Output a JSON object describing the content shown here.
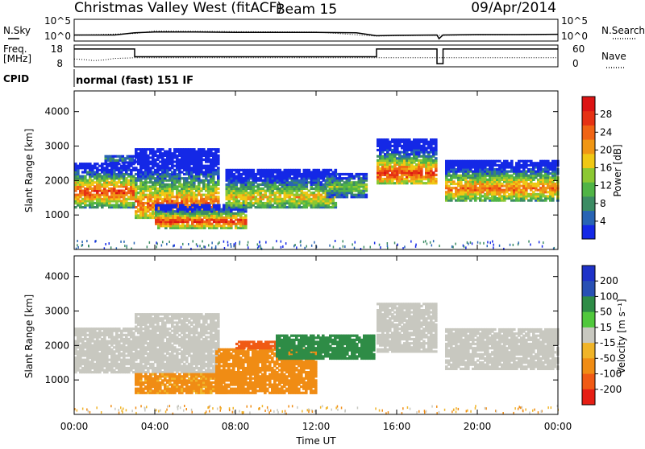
{
  "header": {
    "title": "Christmas Valley West (fitACF)",
    "beam": "Beam 15",
    "date": "09/Apr/2014"
  },
  "chart_data": [
    {
      "type": "line",
      "name": "noise-panel",
      "left_label": "N.Sky",
      "right_label": "N.Search",
      "left_ticks": [
        "10^5",
        "10^0"
      ],
      "right_ticks": [
        "10^5",
        "10^0"
      ],
      "series": [
        {
          "name": "N.Sky",
          "style": "solid",
          "x": [
            0,
            2,
            3,
            4,
            6,
            8,
            10,
            12,
            14,
            15,
            16,
            18,
            18.1,
            18.3,
            20,
            22,
            24
          ],
          "y": [
            1.2,
            1.2,
            1.8,
            2.0,
            2.0,
            1.9,
            1.9,
            1.9,
            1.8,
            1.0,
            1.1,
            1.2,
            0.2,
            1.2,
            1.3,
            1.3,
            1.4
          ]
        },
        {
          "name": "N.Search",
          "style": "dotted",
          "x": [
            0,
            3,
            4,
            8,
            12,
            15,
            16,
            18,
            20,
            24
          ],
          "y": [
            1.1,
            1.6,
            2.3,
            2.1,
            2.0,
            0.9,
            1.0,
            1.1,
            1.2,
            1.3
          ]
        }
      ],
      "xlim": [
        0,
        24
      ]
    },
    {
      "type": "line",
      "name": "frequency-panel",
      "left_label": "Freq. [MHz]",
      "right_label": "Nave",
      "left_ticks": [
        "18",
        "8"
      ],
      "right_ticks": [
        "60",
        "0"
      ],
      "series": [
        {
          "name": "Freq.",
          "style": "solid",
          "unit": "MHz",
          "x": [
            0,
            3.0,
            3.0,
            15.0,
            15.0,
            18.0,
            18.0,
            18.3,
            18.3,
            24
          ],
          "y": [
            16.5,
            16.5,
            11.5,
            11.5,
            16.5,
            16.5,
            7.0,
            7.0,
            16.5,
            16.5
          ]
        },
        {
          "name": "Nave",
          "style": "dotted",
          "x": [
            0,
            0.5,
            1,
            1.5,
            2,
            3,
            6,
            9,
            12,
            15,
            18,
            21,
            24
          ],
          "y": [
            20,
            18,
            15,
            17,
            22,
            24,
            24,
            24,
            24,
            24,
            24,
            24,
            24
          ]
        }
      ],
      "xlim": [
        0,
        24
      ]
    },
    {
      "type": "heatmap",
      "name": "power-panel",
      "ylabel": "Slant Range [km]",
      "yticks": [
        "1000",
        "2000",
        "3000",
        "4000"
      ],
      "ylim": [
        0,
        4600
      ],
      "xlim": [
        0,
        24
      ],
      "colorbar": {
        "label": "Power [dB]",
        "ticks": [
          "4",
          "8",
          "12",
          "16",
          "20",
          "24",
          "28"
        ],
        "colors": [
          "#1428e6",
          "#2864b4",
          "#3c8c64",
          "#50b446",
          "#8cc832",
          "#f0c814",
          "#f09614",
          "#f06414",
          "#e63214",
          "#dc1414"
        ]
      },
      "regions": [
        {
          "x0": 0.0,
          "x1": 3.0,
          "r0": 1200,
          "r1": 2500,
          "peak": 1650,
          "level": 0.85
        },
        {
          "x0": 1.5,
          "x1": 3.0,
          "r0": 2500,
          "r1": 2700,
          "peak": 2600,
          "level": 0.3
        },
        {
          "x0": 3.0,
          "x1": 7.2,
          "r0": 900,
          "r1": 2900,
          "peak": 1300,
          "level": 0.75
        },
        {
          "x0": 4.0,
          "x1": 8.5,
          "r0": 600,
          "r1": 1300,
          "peak": 800,
          "level": 0.9
        },
        {
          "x0": 7.5,
          "x1": 13.0,
          "r0": 1200,
          "r1": 2300,
          "peak": 1500,
          "level": 0.6
        },
        {
          "x0": 12.5,
          "x1": 14.5,
          "r0": 1500,
          "r1": 2200,
          "peak": 1800,
          "level": 0.45
        },
        {
          "x0": 15.0,
          "x1": 18.0,
          "r0": 1900,
          "r1": 3200,
          "peak": 2200,
          "level": 0.85
        },
        {
          "x0": 18.4,
          "x1": 24.0,
          "r0": 1400,
          "r1": 2600,
          "peak": 1750,
          "level": 0.75
        }
      ]
    },
    {
      "type": "heatmap",
      "name": "velocity-panel",
      "ylabel": "Slant Range [km]",
      "xlabel": "Time UT",
      "yticks": [
        "1000",
        "2000",
        "3000",
        "4000"
      ],
      "xticks": [
        "00:00",
        "04:00",
        "08:00",
        "12:00",
        "16:00",
        "20:00",
        "00:00"
      ],
      "ylim": [
        0,
        4600
      ],
      "xlim": [
        0,
        24
      ],
      "colorbar": {
        "label": "Velocity [m s⁻¹]",
        "ticks": [
          "200",
          "100",
          "50",
          "15",
          "-15",
          "-50",
          "-100",
          "-200"
        ],
        "colors": [
          "#1e32c8",
          "#2850b4",
          "#2e8c46",
          "#50c83c",
          "#c8c8c0",
          "#f0b428",
          "#f08c14",
          "#f05a14",
          "#e61e14"
        ]
      },
      "regions": [
        {
          "x0": 0.0,
          "x1": 3.0,
          "r0": 1200,
          "r1": 2500,
          "vel": 0
        },
        {
          "x0": 3.0,
          "x1": 7.2,
          "r0": 1200,
          "r1": 2900,
          "vel": 0
        },
        {
          "x0": 3.0,
          "x1": 7.5,
          "r0": 600,
          "r1": 1200,
          "vel": -60
        },
        {
          "x0": 7.0,
          "x1": 12.0,
          "r0": 600,
          "r1": 1900,
          "vel": -80
        },
        {
          "x0": 8.0,
          "x1": 10.0,
          "r0": 1900,
          "r1": 2100,
          "vel": -150
        },
        {
          "x0": 10.0,
          "x1": 14.8,
          "r0": 1600,
          "r1": 2300,
          "vel": 45
        },
        {
          "x0": 15.0,
          "x1": 18.0,
          "r0": 1800,
          "r1": 3200,
          "vel": 0
        },
        {
          "x0": 18.4,
          "x1": 24.0,
          "r0": 1300,
          "r1": 2500,
          "vel": 0
        }
      ]
    }
  ],
  "cpid": {
    "label": "CPID",
    "text": "normal (fast) 151 IF"
  }
}
